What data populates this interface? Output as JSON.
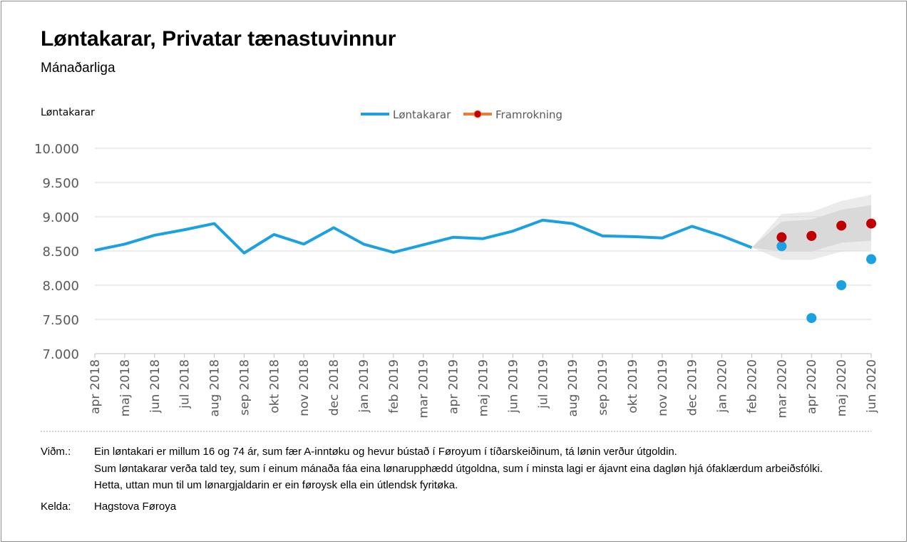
{
  "title": "Løntakarar, Privatar tænastuvinnur",
  "subtitle": "Mánaðarliga",
  "notes": {
    "label": "Viðm.:",
    "lines": [
      "Ein løntakari er millum 16 og 74 ár, sum fær A-inntøku og hevur bústað í Føroyum í tíðarskeiðinum, tá lønin verður útgoldin.",
      "Sum løntakarar verða tald tey, sum í einum mánaða fáa eina lønarupphædd útgoldna, sum í minsta lagi er ájavnt eina dagløn hjá ófaklærdum arbeiðsfólki.",
      "Hetta, uttan mun til um lønargjaldarin er ein føroysk ella ein útlendsk fyritøka."
    ]
  },
  "source": {
    "label": "Kelda:",
    "text": "Hagstova Føroya"
  },
  "chart_data": {
    "type": "line",
    "ylabel": "Løntakarar",
    "ylim": [
      7000,
      10000
    ],
    "yticks": [
      "7.000",
      "7.500",
      "8.000",
      "8.500",
      "9.000",
      "9.500",
      "10.000"
    ],
    "ytick_values": [
      7000,
      7500,
      8000,
      8500,
      9000,
      9500,
      10000
    ],
    "grid": true,
    "legend_position": "top-center",
    "categories": [
      "apr 2018",
      "maj 2018",
      "jun 2018",
      "jul 2018",
      "aug 2018",
      "sep 2018",
      "okt 2018",
      "nov 2018",
      "dec 2018",
      "jan 2019",
      "feb 2019",
      "mar 2019",
      "apr 2019",
      "maj 2019",
      "jun 2019",
      "jul 2019",
      "aug 2019",
      "sep 2019",
      "okt 2019",
      "nov 2019",
      "dec 2019",
      "jan 2020",
      "feb 2020",
      "mar 2020",
      "apr 2020",
      "maj 2020",
      "jun 2020"
    ],
    "series": [
      {
        "name": "Løntakarar",
        "color": "#1ba1e2",
        "line": [
          8510,
          8600,
          8730,
          8810,
          8900,
          8470,
          8740,
          8600,
          8840,
          8600,
          8480,
          8590,
          8700,
          8680,
          8790,
          8950,
          8900,
          8720,
          8710,
          8690,
          8860,
          8720,
          8550,
          null,
          null,
          null,
          null
        ],
        "points": [
          null,
          null,
          null,
          null,
          null,
          null,
          null,
          null,
          null,
          null,
          null,
          null,
          null,
          null,
          null,
          null,
          null,
          null,
          null,
          null,
          null,
          null,
          null,
          8570,
          7520,
          8000,
          8380
        ]
      },
      {
        "name": "Framrokning",
        "color": "#c00000",
        "legend_line_color": "#ed7d31",
        "points": [
          null,
          null,
          null,
          null,
          null,
          null,
          null,
          null,
          null,
          null,
          null,
          null,
          null,
          null,
          null,
          null,
          null,
          null,
          null,
          null,
          null,
          null,
          null,
          8700,
          8720,
          8870,
          8900
        ]
      }
    ],
    "forecast_band": {
      "start_index": 22,
      "start_value": 8550,
      "outer_color": "#ebebeb",
      "inner_color": "#d9d9d9",
      "outer_low": [
        8370,
        8370,
        8490,
        8510
      ],
      "outer_high": [
        9040,
        9070,
        9230,
        9320
      ],
      "inner_low": [
        8490,
        8490,
        8620,
        8650
      ],
      "inner_high": [
        8930,
        8960,
        9100,
        9170
      ]
    }
  }
}
